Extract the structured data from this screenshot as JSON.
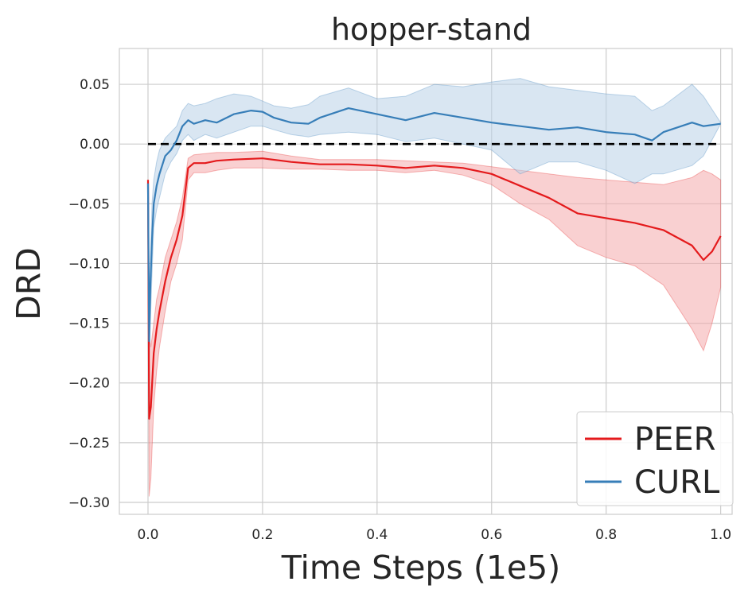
{
  "chart_data": {
    "type": "line",
    "title": "hopper-stand",
    "xlabel": "Time Steps (1e5)",
    "ylabel": "DRD",
    "xlim": [
      -0.05,
      1.02
    ],
    "ylim": [
      -0.31,
      0.08
    ],
    "xticks": [
      0.0,
      0.2,
      0.4,
      0.6,
      0.8,
      1.0
    ],
    "xtick_labels": [
      "0.0",
      "0.2",
      "0.4",
      "0.6",
      "0.8",
      "1.0"
    ],
    "yticks": [
      0.05,
      0.0,
      -0.05,
      -0.1,
      -0.15,
      -0.2,
      -0.25,
      -0.3
    ],
    "ytick_labels": [
      "0.05",
      "0.00",
      "−0.05",
      "−0.10",
      "−0.15",
      "−0.20",
      "−0.25",
      "−0.30"
    ],
    "grid": true,
    "legend_position": "bottom-right",
    "reference_line": {
      "y": 0.0,
      "style": "dashed",
      "color": "#000000"
    },
    "series": [
      {
        "name": "PEER",
        "color": "#e41a1c",
        "fill": "#f4a9ab",
        "x": [
          0.0,
          0.002,
          0.005,
          0.01,
          0.015,
          0.02,
          0.03,
          0.04,
          0.05,
          0.06,
          0.07,
          0.08,
          0.1,
          0.12,
          0.15,
          0.2,
          0.25,
          0.3,
          0.35,
          0.4,
          0.45,
          0.5,
          0.55,
          0.6,
          0.65,
          0.7,
          0.75,
          0.8,
          0.85,
          0.9,
          0.95,
          0.97,
          0.985,
          1.0
        ],
        "y": [
          -0.03,
          -0.23,
          -0.22,
          -0.175,
          -0.155,
          -0.14,
          -0.115,
          -0.095,
          -0.08,
          -0.06,
          -0.02,
          -0.016,
          -0.016,
          -0.014,
          -0.013,
          -0.012,
          -0.015,
          -0.017,
          -0.017,
          -0.018,
          -0.02,
          -0.018,
          -0.02,
          -0.025,
          -0.035,
          -0.045,
          -0.058,
          -0.062,
          -0.066,
          -0.072,
          -0.085,
          -0.097,
          -0.09,
          -0.077
        ],
        "upper": [
          -0.03,
          -0.16,
          -0.17,
          -0.15,
          -0.13,
          -0.12,
          -0.095,
          -0.08,
          -0.065,
          -0.045,
          -0.012,
          -0.009,
          -0.008,
          -0.007,
          -0.007,
          -0.006,
          -0.01,
          -0.013,
          -0.013,
          -0.013,
          -0.014,
          -0.015,
          -0.016,
          -0.019,
          -0.022,
          -0.025,
          -0.028,
          -0.03,
          -0.032,
          -0.034,
          -0.028,
          -0.022,
          -0.025,
          -0.03
        ],
        "lower": [
          -0.03,
          -0.295,
          -0.28,
          -0.22,
          -0.19,
          -0.17,
          -0.14,
          -0.115,
          -0.1,
          -0.08,
          -0.03,
          -0.024,
          -0.024,
          -0.022,
          -0.02,
          -0.02,
          -0.021,
          -0.021,
          -0.022,
          -0.022,
          -0.024,
          -0.022,
          -0.026,
          -0.034,
          -0.05,
          -0.063,
          -0.085,
          -0.095,
          -0.102,
          -0.118,
          -0.155,
          -0.173,
          -0.15,
          -0.12
        ]
      },
      {
        "name": "CURL",
        "color": "#377eb8",
        "fill": "#b9d2e8",
        "x": [
          0.0,
          0.002,
          0.004,
          0.007,
          0.01,
          0.015,
          0.02,
          0.03,
          0.04,
          0.05,
          0.06,
          0.07,
          0.08,
          0.1,
          0.12,
          0.15,
          0.18,
          0.2,
          0.22,
          0.25,
          0.28,
          0.3,
          0.35,
          0.4,
          0.45,
          0.5,
          0.55,
          0.6,
          0.65,
          0.7,
          0.75,
          0.8,
          0.85,
          0.88,
          0.9,
          0.95,
          0.97,
          1.0
        ],
        "y": [
          -0.033,
          -0.165,
          -0.12,
          -0.08,
          -0.05,
          -0.035,
          -0.025,
          -0.01,
          -0.005,
          0.003,
          0.015,
          0.02,
          0.017,
          0.02,
          0.018,
          0.025,
          0.028,
          0.027,
          0.022,
          0.018,
          0.017,
          0.022,
          0.03,
          0.025,
          0.02,
          0.026,
          0.022,
          0.018,
          0.015,
          0.012,
          0.014,
          0.01,
          0.008,
          0.003,
          0.01,
          0.018,
          0.015,
          0.017
        ],
        "upper": [
          -0.033,
          -0.15,
          -0.1,
          -0.05,
          -0.03,
          -0.015,
          -0.005,
          0.005,
          0.01,
          0.015,
          0.028,
          0.034,
          0.032,
          0.034,
          0.038,
          0.042,
          0.04,
          0.036,
          0.032,
          0.03,
          0.033,
          0.04,
          0.047,
          0.038,
          0.04,
          0.05,
          0.048,
          0.052,
          0.055,
          0.048,
          0.045,
          0.042,
          0.04,
          0.028,
          0.032,
          0.05,
          0.04,
          0.018
        ],
        "lower": [
          -0.033,
          -0.18,
          -0.15,
          -0.11,
          -0.07,
          -0.055,
          -0.045,
          -0.025,
          -0.015,
          -0.008,
          0.003,
          0.008,
          0.003,
          0.008,
          0.005,
          0.01,
          0.015,
          0.015,
          0.012,
          0.008,
          0.006,
          0.008,
          0.01,
          0.008,
          0.002,
          0.005,
          0.0,
          -0.005,
          -0.025,
          -0.015,
          -0.015,
          -0.022,
          -0.033,
          -0.025,
          -0.025,
          -0.018,
          -0.01,
          0.017
        ]
      }
    ]
  }
}
